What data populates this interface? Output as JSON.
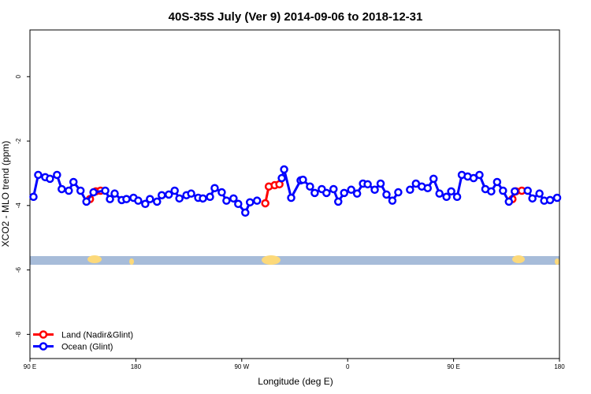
{
  "chart_data": {
    "type": "line",
    "title": "40S-35S July (Ver 9)   2014-09-06 to 2018-12-31",
    "x_label": "Longitude (deg E)",
    "y_label": "XCO2 - MLO trend (ppm)",
    "xlim": [
      90,
      540
    ],
    "xticks": [
      {
        "value": 90,
        "label": "90 E"
      },
      180,
      {
        "value": 270,
        "label": "90 W"
      },
      {
        "value": 360,
        "label": "0"
      },
      {
        "value": 450,
        "label": "90 E"
      },
      {
        "value": 540,
        "label": "180"
      }
    ],
    "ylim": [
      -8.75,
      1.45
    ],
    "yticks": [
      -8,
      -6,
      -4,
      -2,
      0
    ],
    "legend": "bottomleft",
    "series": [
      {
        "name": "Land (Nadir&Glint)",
        "color": "#ff0000",
        "x": [
          141,
          146,
          150,
          null,
          290,
          293,
          298,
          302,
          null,
          500,
          503,
          508
        ],
        "values": [
          -3.8,
          -3.56,
          -3.54,
          null,
          -3.93,
          -3.41,
          -3.37,
          -3.34,
          null,
          -3.8,
          -3.56,
          -3.54
        ]
      },
      {
        "name": "Ocean (Glint)",
        "color": "#0000ff",
        "x": [
          93,
          97,
          103,
          107,
          113,
          117,
          123,
          127,
          133,
          138,
          144,
          154,
          158,
          162,
          168,
          172,
          178,
          182,
          188,
          192,
          198,
          202,
          208,
          213,
          217,
          223,
          227,
          233,
          237,
          243,
          247,
          253,
          257,
          263,
          267,
          273,
          277,
          283,
          null,
          304,
          306,
          312,
          320,
          322,
          328,
          332,
          338,
          342,
          348,
          352,
          357,
          363,
          368,
          373,
          377,
          383,
          388,
          393,
          398,
          403,
          null,
          413,
          418,
          423,
          428,
          433,
          438,
          444,
          448,
          453,
          457,
          462,
          467,
          472,
          477,
          482,
          487,
          492,
          497,
          502,
          null,
          513,
          517,
          523,
          527,
          532,
          538
        ],
        "values": [
          -3.73,
          -3.05,
          -3.12,
          -3.17,
          -3.05,
          -3.49,
          -3.54,
          -3.27,
          -3.54,
          -3.88,
          -3.59,
          -3.54,
          -3.8,
          -3.63,
          -3.83,
          -3.8,
          -3.76,
          -3.85,
          -3.95,
          -3.8,
          -3.88,
          -3.68,
          -3.66,
          -3.54,
          -3.78,
          -3.68,
          -3.63,
          -3.76,
          -3.78,
          -3.73,
          -3.46,
          -3.59,
          -3.85,
          -3.78,
          -3.95,
          -4.22,
          -3.9,
          -3.85,
          null,
          -3.15,
          -2.88,
          -3.76,
          -3.22,
          -3.2,
          -3.41,
          -3.61,
          -3.49,
          -3.61,
          -3.49,
          -3.88,
          -3.61,
          -3.51,
          -3.63,
          -3.32,
          -3.34,
          -3.51,
          -3.32,
          -3.66,
          -3.85,
          -3.59,
          null,
          -3.51,
          -3.32,
          -3.41,
          -3.46,
          -3.17,
          -3.63,
          -3.73,
          -3.56,
          -3.73,
          -3.05,
          -3.1,
          -3.15,
          -3.05,
          -3.49,
          -3.56,
          -3.27,
          -3.54,
          -3.88,
          -3.56,
          null,
          -3.54,
          -3.78,
          -3.63,
          -3.85,
          -3.83,
          -3.76
        ]
      }
    ]
  }
}
